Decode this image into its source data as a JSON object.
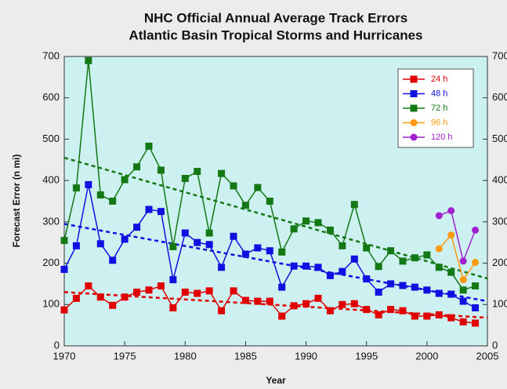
{
  "chart_data": {
    "type": "line",
    "title": "NHC Official Annual Average Track Errors",
    "subtitle": "Atlantic Basin Tropical Storms and Hurricanes",
    "x_label": "Year",
    "y_label": "Forecast Error (n mi)",
    "x": [
      1970,
      1971,
      1972,
      1973,
      1974,
      1975,
      1976,
      1977,
      1978,
      1979,
      1980,
      1981,
      1982,
      1983,
      1984,
      1985,
      1986,
      1987,
      1988,
      1989,
      1990,
      1991,
      1992,
      1993,
      1994,
      1995,
      1996,
      1997,
      1998,
      1999,
      2000,
      2001,
      2002,
      2003,
      2004
    ],
    "xlim": [
      1970,
      2005
    ],
    "xticks": [
      1970,
      1975,
      1980,
      1985,
      1990,
      1995,
      2000,
      2005
    ],
    "ylim": [
      0,
      700
    ],
    "yticks": [
      0,
      100,
      200,
      300,
      400,
      500,
      600,
      700
    ],
    "y2lim": [
      0,
      700
    ],
    "y2ticks": [
      0,
      100,
      200,
      300,
      400,
      500,
      600,
      700
    ],
    "plot_background": "#cdf0f0",
    "series": [
      {
        "name": "24 h",
        "color": "#e00000",
        "marker": "square",
        "values": [
          87,
          115,
          145,
          118,
          98,
          118,
          130,
          135,
          145,
          92,
          130,
          127,
          133,
          85,
          133,
          110,
          108,
          108,
          72,
          97,
          102,
          115,
          85,
          100,
          102,
          88,
          75,
          88,
          85,
          72,
          72,
          75,
          68,
          58,
          55
        ],
        "trend": {
          "x": [
            1970,
            2005
          ],
          "values": [
            130,
            68
          ]
        }
      },
      {
        "name": "48 h",
        "color": "#1010e0",
        "marker": "square",
        "values": [
          185,
          242,
          390,
          247,
          207,
          258,
          287,
          330,
          325,
          160,
          273,
          250,
          245,
          190,
          265,
          222,
          237,
          230,
          142,
          193,
          193,
          190,
          170,
          180,
          210,
          162,
          130,
          150,
          146,
          142,
          135,
          127,
          125,
          108,
          92
        ],
        "trend": {
          "x": [
            1970,
            2005
          ],
          "values": [
            295,
            108
          ]
        }
      },
      {
        "name": "72 h",
        "color": "#147814",
        "marker": "square",
        "values": [
          255,
          382,
          690,
          365,
          350,
          402,
          433,
          483,
          425,
          240,
          405,
          422,
          273,
          417,
          387,
          340,
          383,
          350,
          227,
          283,
          302,
          298,
          280,
          242,
          342,
          237,
          192,
          230,
          205,
          213,
          220,
          190,
          178,
          135,
          145
        ],
        "trend": {
          "x": [
            1970,
            2005
          ],
          "values": [
            455,
            163
          ]
        }
      },
      {
        "name": "96 h",
        "color": "#ff9a10",
        "marker": "circle",
        "x": [
          2001,
          2002,
          2003,
          2004
        ],
        "values": [
          235,
          268,
          160,
          202
        ]
      },
      {
        "name": "120 h",
        "color": "#a020d0",
        "marker": "circle",
        "x": [
          2001,
          2002,
          2003,
          2004
        ],
        "values": [
          315,
          327,
          205,
          280
        ]
      }
    ]
  }
}
